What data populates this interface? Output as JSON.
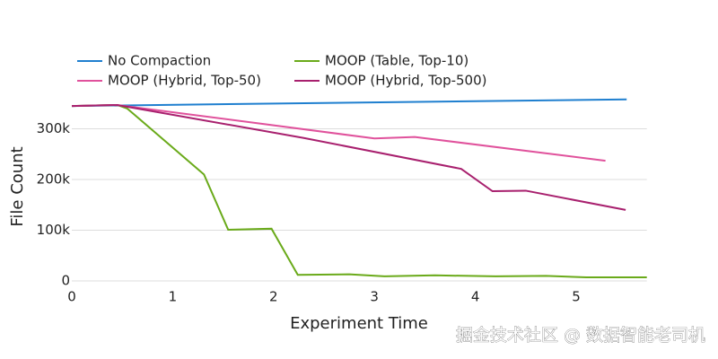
{
  "chart_data": {
    "type": "line",
    "x_label": "Experiment Time",
    "y_label": "File Count",
    "xlim": [
      0,
      5.7
    ],
    "xticks": [
      0,
      1,
      2,
      3,
      4,
      5
    ],
    "ylim": [
      0,
      370000
    ],
    "yticks": [
      {
        "value": 0,
        "label": "0"
      },
      {
        "value": 100000,
        "label": "100k"
      },
      {
        "value": 200000,
        "label": "200k"
      },
      {
        "value": 300000,
        "label": "300k"
      }
    ],
    "grid": true,
    "legend": "top",
    "series": [
      {
        "name": "No Compaction",
        "color": "#1f7fcf",
        "x": [
          0,
          5.5
        ],
        "values": [
          345000,
          358000
        ]
      },
      {
        "name": "MOOP (Table, Top-10)",
        "color": "#6aaa1a",
        "x": [
          0,
          0.45,
          0.55,
          1.31,
          1.55,
          1.98,
          2.24,
          2.75,
          3.1,
          3.6,
          4.2,
          4.7,
          5.1,
          5.7
        ],
        "values": [
          345000,
          347000,
          340000,
          210000,
          101000,
          103000,
          12000,
          13000,
          9000,
          11000,
          9000,
          10000,
          7000,
          7000
        ]
      },
      {
        "name": "MOOP (Hybrid, Top-50)",
        "color": "#e0529c",
        "x": [
          0,
          0.45,
          3.0,
          3.4,
          5.29
        ],
        "values": [
          345000,
          347000,
          281000,
          284000,
          237000
        ]
      },
      {
        "name": "MOOP (Hybrid, Top-500)",
        "color": "#a8206e",
        "x": [
          0,
          0.45,
          2.3,
          3.86,
          4.17,
          4.5,
          5.49
        ],
        "values": [
          345000,
          347000,
          282000,
          221000,
          177000,
          178000,
          140000
        ]
      }
    ]
  },
  "watermark": "掘金技术社区 @ 数据智能老司机"
}
